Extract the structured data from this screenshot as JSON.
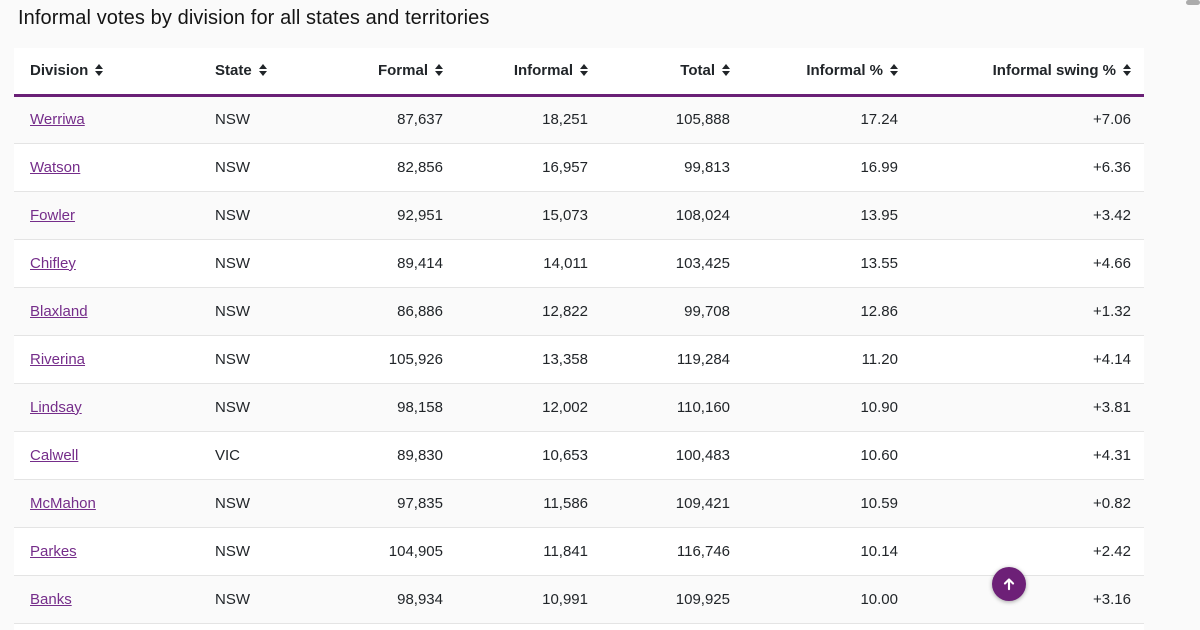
{
  "page": {
    "title": "Informal votes by division for all states and territories",
    "background_color": "#fafafa",
    "accent_purple": "#6a2076",
    "link_purple": "#752d8a"
  },
  "table": {
    "columns": [
      {
        "key": "division",
        "label": "Division",
        "align": "left",
        "sortable": true
      },
      {
        "key": "state",
        "label": "State",
        "align": "left",
        "sortable": true
      },
      {
        "key": "formal",
        "label": "Formal",
        "align": "right",
        "sortable": true
      },
      {
        "key": "informal",
        "label": "Informal",
        "align": "right",
        "sortable": true
      },
      {
        "key": "total",
        "label": "Total",
        "align": "right",
        "sortable": true
      },
      {
        "key": "informal_pct",
        "label": "Informal %",
        "align": "right",
        "sortable": true
      },
      {
        "key": "informal_swing_pct",
        "label": "Informal swing %",
        "align": "right",
        "sortable": true
      }
    ],
    "rows": [
      {
        "division": "Werriwa",
        "state": "NSW",
        "formal": "87,637",
        "informal": "18,251",
        "total": "105,888",
        "informal_pct": "17.24",
        "informal_swing_pct": "+7.06"
      },
      {
        "division": "Watson",
        "state": "NSW",
        "formal": "82,856",
        "informal": "16,957",
        "total": "99,813",
        "informal_pct": "16.99",
        "informal_swing_pct": "+6.36"
      },
      {
        "division": "Fowler",
        "state": "NSW",
        "formal": "92,951",
        "informal": "15,073",
        "total": "108,024",
        "informal_pct": "13.95",
        "informal_swing_pct": "+3.42"
      },
      {
        "division": "Chifley",
        "state": "NSW",
        "formal": "89,414",
        "informal": "14,011",
        "total": "103,425",
        "informal_pct": "13.55",
        "informal_swing_pct": "+4.66"
      },
      {
        "division": "Blaxland",
        "state": "NSW",
        "formal": "86,886",
        "informal": "12,822",
        "total": "99,708",
        "informal_pct": "12.86",
        "informal_swing_pct": "+1.32"
      },
      {
        "division": "Riverina",
        "state": "NSW",
        "formal": "105,926",
        "informal": "13,358",
        "total": "119,284",
        "informal_pct": "11.20",
        "informal_swing_pct": "+4.14"
      },
      {
        "division": "Lindsay",
        "state": "NSW",
        "formal": "98,158",
        "informal": "12,002",
        "total": "110,160",
        "informal_pct": "10.90",
        "informal_swing_pct": "+3.81"
      },
      {
        "division": "Calwell",
        "state": "VIC",
        "formal": "89,830",
        "informal": "10,653",
        "total": "100,483",
        "informal_pct": "10.60",
        "informal_swing_pct": "+4.31"
      },
      {
        "division": "McMahon",
        "state": "NSW",
        "formal": "97,835",
        "informal": "11,586",
        "total": "109,421",
        "informal_pct": "10.59",
        "informal_swing_pct": "+0.82"
      },
      {
        "division": "Parkes",
        "state": "NSW",
        "formal": "104,905",
        "informal": "11,841",
        "total": "116,746",
        "informal_pct": "10.14",
        "informal_swing_pct": "+2.42"
      },
      {
        "division": "Banks",
        "state": "NSW",
        "formal": "98,934",
        "informal": "10,991",
        "total": "109,925",
        "informal_pct": "10.00",
        "informal_swing_pct": "+3.16"
      }
    ]
  },
  "back_to_top": {
    "label": "Back to top",
    "icon": "up-arrow"
  }
}
